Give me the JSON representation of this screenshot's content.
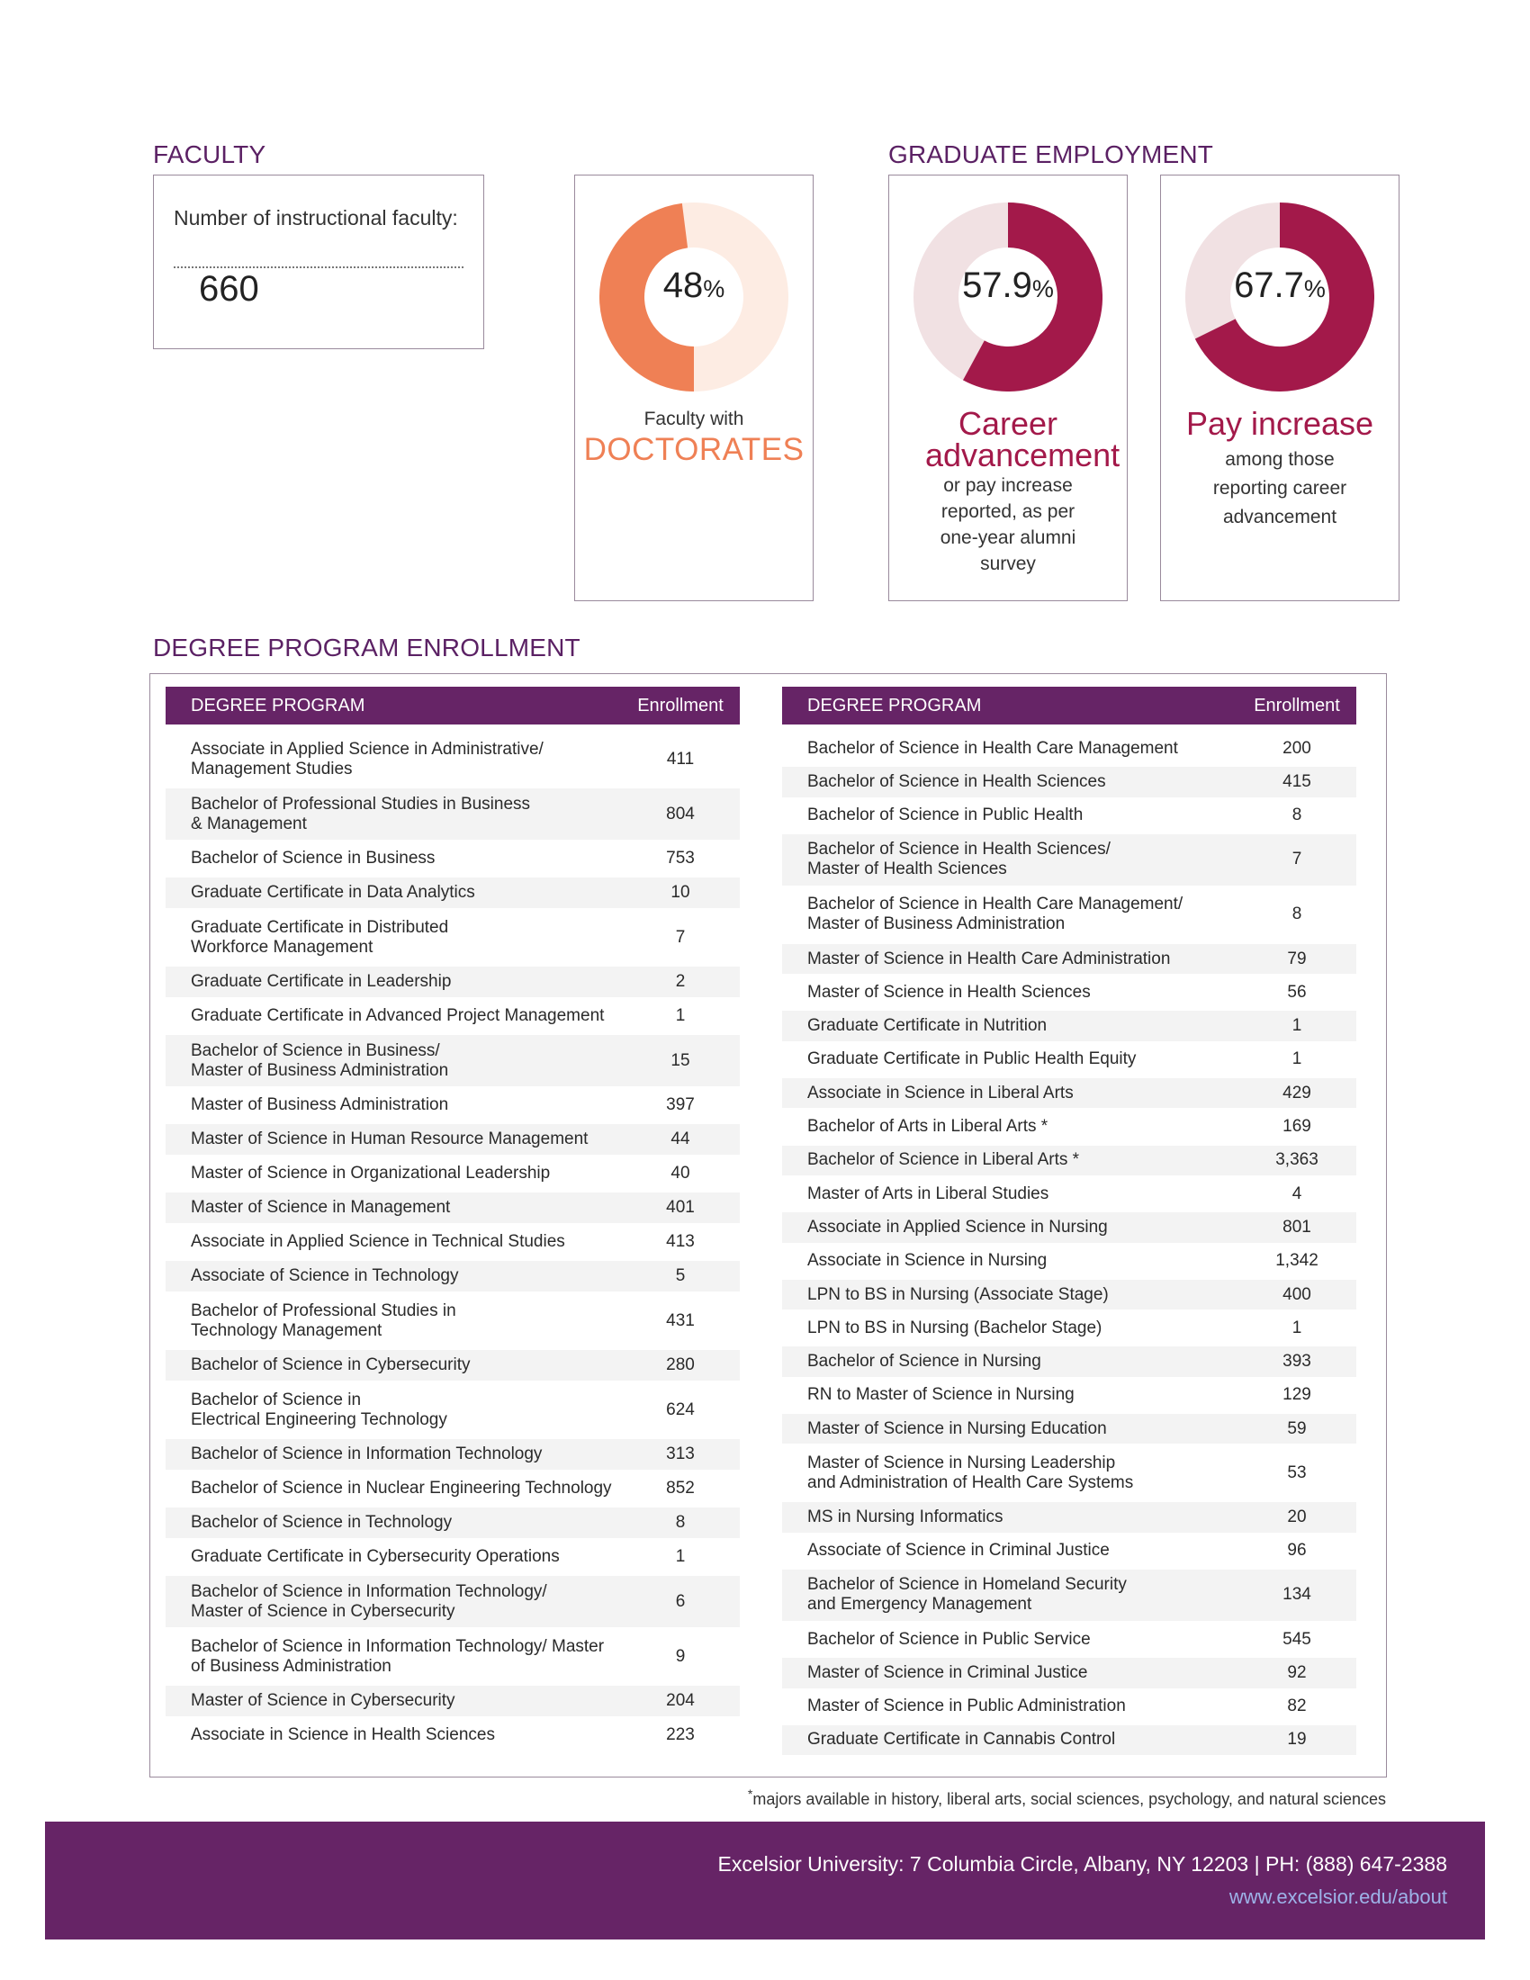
{
  "faculty": {
    "heading": "FACULTY",
    "label": "Number of instructional faculty:",
    "count": "660",
    "doctorates": {
      "value": 48,
      "pct_label": "48",
      "unit": "%",
      "line1": "Faculty with",
      "line2": "DOCTORATES",
      "color": "#ef8055",
      "track": "#fdece3"
    }
  },
  "employment": {
    "heading": "GRADUATE EMPLOYMENT",
    "career": {
      "value": 57.9,
      "pct_label": "57.9",
      "unit": "%",
      "title": "Career advancement",
      "desc": "or pay increase reported, as per one-year alumni survey",
      "color": "#a3194a",
      "track": "#f1e1e3"
    },
    "pay": {
      "value": 67.7,
      "pct_label": "67.7",
      "unit": "%",
      "title": "Pay increase",
      "desc": "among those reporting career advancement",
      "color": "#a3194a",
      "track": "#f1e1e3"
    }
  },
  "enrollment": {
    "heading": "DEGREE PROGRAM ENROLLMENT",
    "col_program": "DEGREE PROGRAM",
    "col_enrollment": "Enrollment",
    "left": [
      {
        "program": "Associate in Applied Science in Administrative/\nManagement Studies",
        "enrollment": "411"
      },
      {
        "program": "Bachelor of Professional Studies in Business\n& Management",
        "enrollment": "804"
      },
      {
        "program": "Bachelor of Science in Business",
        "enrollment": "753"
      },
      {
        "program": "Graduate Certificate in Data Analytics",
        "enrollment": "10"
      },
      {
        "program": "Graduate Certificate in Distributed\nWorkforce Management",
        "enrollment": "7"
      },
      {
        "program": "Graduate Certificate in Leadership",
        "enrollment": "2"
      },
      {
        "program": "Graduate Certificate in Advanced Project Management",
        "enrollment": "1"
      },
      {
        "program": "Bachelor of Science in Business/\nMaster of Business Administration",
        "enrollment": "15"
      },
      {
        "program": "Master of Business Administration",
        "enrollment": "397"
      },
      {
        "program": "Master of Science in Human Resource Management",
        "enrollment": "44"
      },
      {
        "program": "Master of Science in Organizational Leadership",
        "enrollment": "40"
      },
      {
        "program": "Master of Science in Management",
        "enrollment": "401"
      },
      {
        "program": "Associate in Applied Science in Technical Studies",
        "enrollment": "413"
      },
      {
        "program": "Associate of Science in Technology",
        "enrollment": "5"
      },
      {
        "program": "Bachelor of Professional Studies in\nTechnology Management",
        "enrollment": "431"
      },
      {
        "program": "Bachelor of Science in Cybersecurity",
        "enrollment": "280"
      },
      {
        "program": "Bachelor of Science in\nElectrical Engineering Technology",
        "enrollment": "624"
      },
      {
        "program": "Bachelor of Science in Information Technology",
        "enrollment": "313"
      },
      {
        "program": "Bachelor of Science in Nuclear Engineering Technology",
        "enrollment": "852"
      },
      {
        "program": "Bachelor of Science in Technology",
        "enrollment": "8"
      },
      {
        "program": "Graduate Certificate in Cybersecurity Operations",
        "enrollment": "1"
      },
      {
        "program": "Bachelor of Science in Information Technology/\nMaster of Science in Cybersecurity",
        "enrollment": "6"
      },
      {
        "program": "Bachelor of Science in Information Technology/ Master\nof Business Administration",
        "enrollment": "9"
      },
      {
        "program": "Master of Science in Cybersecurity",
        "enrollment": "204"
      },
      {
        "program": "Associate in Science in Health Sciences",
        "enrollment": "223"
      }
    ],
    "right": [
      {
        "program": "Bachelor of Science in Health Care Management",
        "enrollment": "200"
      },
      {
        "program": "Bachelor of Science in Health Sciences",
        "enrollment": "415"
      },
      {
        "program": "Bachelor of Science in Public Health",
        "enrollment": "8"
      },
      {
        "program": "Bachelor of Science in Health Sciences/\nMaster of Health Sciences",
        "enrollment": "7"
      },
      {
        "program": "Bachelor of Science in Health Care Management/\nMaster of Business Administration",
        "enrollment": "8"
      },
      {
        "program": "Master of Science in Health Care Administration",
        "enrollment": "79"
      },
      {
        "program": "Master of Science in Health Sciences",
        "enrollment": "56"
      },
      {
        "program": "Graduate Certificate in Nutrition",
        "enrollment": "1"
      },
      {
        "program": "Graduate Certificate in Public Health Equity",
        "enrollment": "1"
      },
      {
        "program": "Associate in Science in Liberal Arts",
        "enrollment": "429"
      },
      {
        "program": "Bachelor of Arts in Liberal Arts *",
        "enrollment": "169"
      },
      {
        "program": "Bachelor of Science in Liberal Arts *",
        "enrollment": "3,363"
      },
      {
        "program": "Master of Arts in Liberal Studies",
        "enrollment": "4"
      },
      {
        "program": "Associate in Applied Science in Nursing",
        "enrollment": "801"
      },
      {
        "program": "Associate in Science in Nursing",
        "enrollment": "1,342"
      },
      {
        "program": "LPN to BS in Nursing (Associate Stage)",
        "enrollment": "400"
      },
      {
        "program": "LPN to BS in Nursing (Bachelor Stage)",
        "enrollment": "1"
      },
      {
        "program": "Bachelor of Science in Nursing",
        "enrollment": "393"
      },
      {
        "program": "RN to Master of Science in Nursing",
        "enrollment": "129"
      },
      {
        "program": "Master of Science in Nursing Education",
        "enrollment": "59"
      },
      {
        "program": "Master of Science in Nursing Leadership\nand Administration of Health Care Systems",
        "enrollment": "53"
      },
      {
        "program": "MS in Nursing Informatics",
        "enrollment": "20"
      },
      {
        "program": "Associate of Science in Criminal Justice",
        "enrollment": "96"
      },
      {
        "program": "Bachelor of Science in Homeland Security\n and Emergency Management",
        "enrollment": "134"
      },
      {
        "program": "Bachelor of Science in Public Service",
        "enrollment": "545"
      },
      {
        "program": "Master of Science in Criminal Justice",
        "enrollment": "92"
      },
      {
        "program": "Master of Science in Public Administration",
        "enrollment": "82"
      },
      {
        "program": "Graduate Certificate in Cannabis Control",
        "enrollment": "19"
      }
    ],
    "footnote_mark": "*",
    "footnote": "majors available in history, liberal arts, social sciences, psychology, and natural sciences"
  },
  "footer": {
    "address": "Excelsior University:  7 Columbia Circle, Albany, NY 12203  |  PH: (888) 647-2388",
    "url": "www.excelsior.edu/about"
  }
}
